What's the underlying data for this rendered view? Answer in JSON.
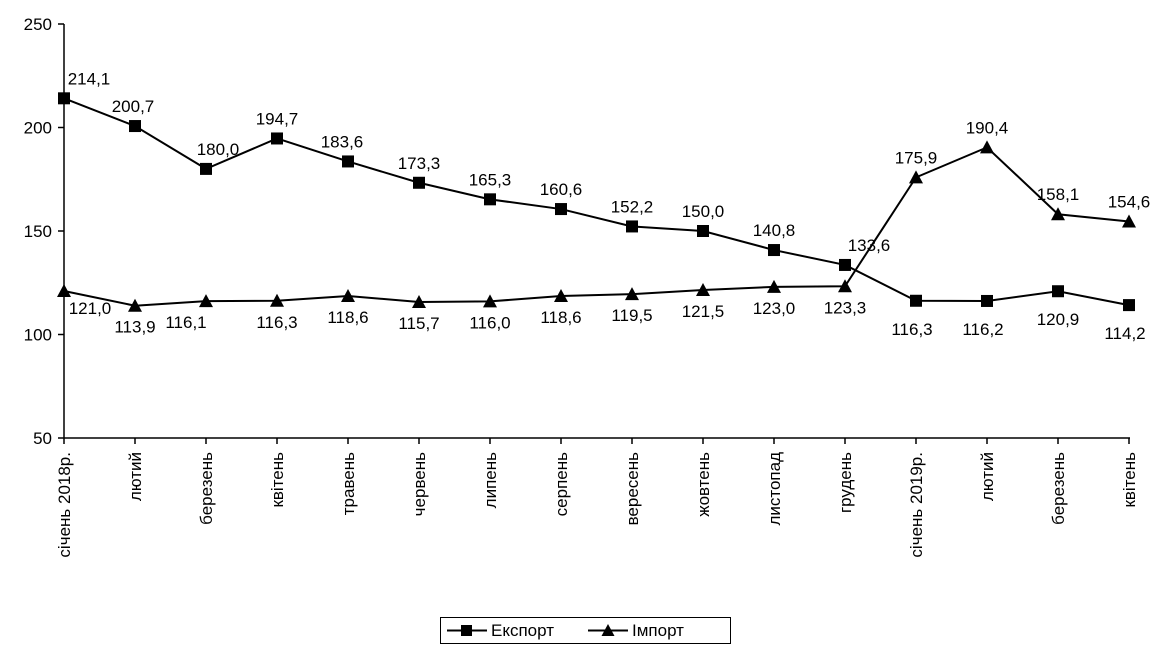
{
  "chart_data": {
    "type": "line",
    "categories": [
      "січень 2018р.",
      "лютий",
      "березень",
      "квітень",
      "травень",
      "червень",
      "липень",
      "серпень",
      "вересень",
      "жовтень",
      "листопад",
      "грудень",
      "січень 2019р.",
      "лютий",
      "березень",
      "квітень"
    ],
    "series": [
      {
        "name": "Експорт",
        "marker": "square",
        "values": [
          214.1,
          200.7,
          180.0,
          194.7,
          183.6,
          173.3,
          165.3,
          160.6,
          152.2,
          150.0,
          140.8,
          133.6,
          116.3,
          116.2,
          120.9,
          114.2
        ],
        "labels": [
          "214,1",
          "200,7",
          "180,0",
          "194,7",
          "183,6",
          "173,3",
          "165,3",
          "160,6",
          "152,2",
          "150,0",
          "140,8",
          "133,6",
          "116,3",
          "116,2",
          "120,9",
          "114,2"
        ]
      },
      {
        "name": "Імпорт",
        "marker": "triangle",
        "values": [
          121.0,
          113.9,
          116.1,
          116.3,
          118.6,
          115.7,
          116.0,
          118.6,
          119.5,
          121.5,
          123.0,
          123.3,
          175.9,
          190.4,
          158.1,
          154.6
        ],
        "labels": [
          "121,0",
          "113,9",
          "116,1",
          "116,3",
          "118,6",
          "115,7",
          "116,0",
          "118,6",
          "119,5",
          "121,5",
          "123,0",
          "123,3",
          "175,9",
          "190,4",
          "158,1",
          "154,6"
        ]
      }
    ],
    "yticks": [
      "50",
      "100",
      "150",
      "200",
      "250"
    ],
    "ylim": [
      50,
      250
    ],
    "grid": false,
    "legend_position": "bottom-center",
    "line_color": "#000000"
  },
  "legend": {
    "export_label": "Експорт",
    "import_label": "Імпорт"
  }
}
